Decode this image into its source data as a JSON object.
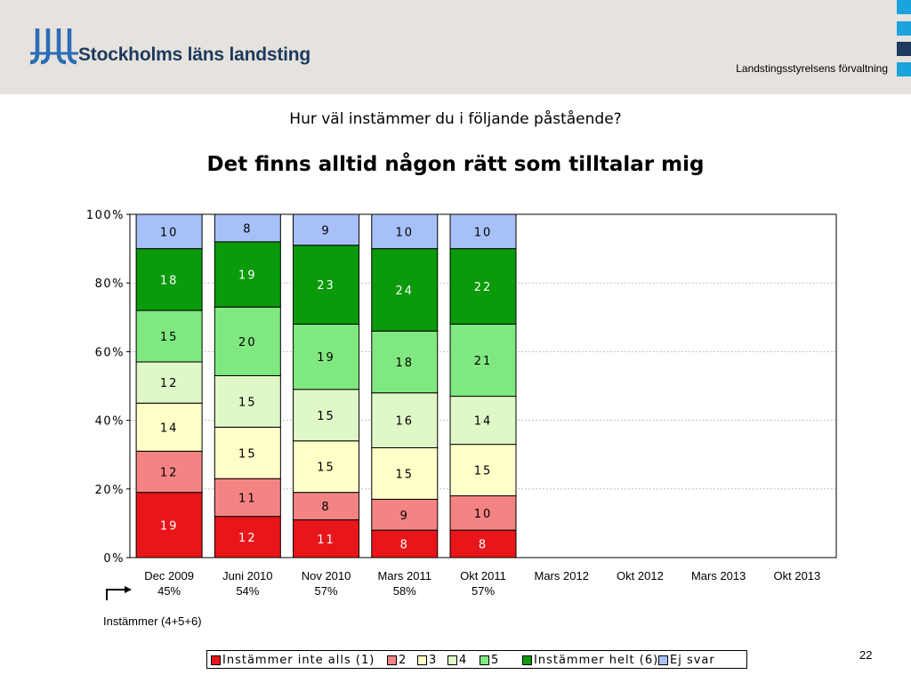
{
  "header": {
    "org_name": "Stockholms läns landsting",
    "department": "Landstingsstyrelsens förvaltning",
    "colors": {
      "band": "#e6e2dd",
      "logo": "#2a6db5",
      "squares": [
        "#1aa3dc",
        "#1aa3dc",
        "#1d3a5f",
        "#1aa3dc",
        "#1aa3dc"
      ]
    }
  },
  "question": "Hur väl instämmer du i följande påstående?",
  "agree_note": "Instämmer (4+5+6)",
  "page_number": "22",
  "chart_data": {
    "type": "bar",
    "stacked": true,
    "title": "Det finns alltid någon rätt som tilltalar mig",
    "categories": [
      "Dec 2009",
      "Juni 2010",
      "Nov 2010",
      "Mars 2011",
      "Okt 2011",
      "Mars 2012",
      "Okt 2012",
      "Mars 2013",
      "Okt 2013"
    ],
    "category_sublabels": [
      "45%",
      "54%",
      "57%",
      "58%",
      "57%",
      "",
      "",
      "",
      ""
    ],
    "series": [
      {
        "name": "Instämmer inte alls (1)",
        "color": "#e8151a",
        "values": [
          19,
          12,
          11,
          8,
          8,
          null,
          null,
          null,
          null
        ]
      },
      {
        "name": "2",
        "color": "#f48484",
        "values": [
          12,
          11,
          8,
          9,
          10,
          null,
          null,
          null,
          null
        ]
      },
      {
        "name": "3",
        "color": "#ffffc8",
        "values": [
          14,
          15,
          15,
          15,
          15,
          null,
          null,
          null,
          null
        ]
      },
      {
        "name": "4",
        "color": "#e0f8c8",
        "values": [
          12,
          15,
          15,
          16,
          14,
          null,
          null,
          null,
          null
        ]
      },
      {
        "name": "5",
        "color": "#80e880",
        "values": [
          15,
          20,
          19,
          18,
          21,
          null,
          null,
          null,
          null
        ]
      },
      {
        "name": "Instämmer helt (6)",
        "color": "#0a9a0a",
        "values": [
          18,
          19,
          23,
          24,
          22,
          null,
          null,
          null,
          null
        ]
      },
      {
        "name": "Ej svar",
        "color": "#a8c0f8",
        "values": [
          10,
          8,
          9,
          10,
          10,
          null,
          null,
          null,
          null
        ]
      }
    ],
    "ylim": [
      0,
      100
    ],
    "y_ticks": [
      "0%",
      "20%",
      "40%",
      "60%",
      "80%",
      "100%"
    ],
    "grid": true,
    "legend_position": "bottom"
  }
}
